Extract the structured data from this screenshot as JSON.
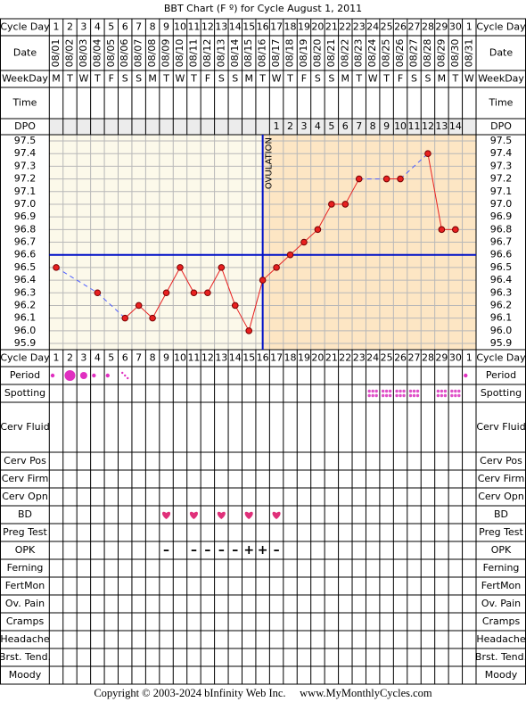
{
  "chart_data": {
    "type": "line",
    "title": "BBT Chart (F º) for Cycle August 1, 2011",
    "top_rows": [
      "Cycle Day",
      "Date",
      "WeekDay",
      "Time",
      "DPO"
    ],
    "bottom_rows": [
      "Cycle Day",
      "Period",
      "Spotting",
      "Cerv Fluid",
      "Cerv Pos",
      "Cerv Firm",
      "Cerv Opn",
      "BD",
      "Preg Test",
      "OPK",
      "Ferning",
      "FertMon",
      "Ov. Pain",
      "Cramps",
      "Headache",
      "Brst. Tend.",
      "Moody"
    ],
    "categories": [
      1,
      2,
      3,
      4,
      5,
      6,
      7,
      8,
      9,
      10,
      11,
      12,
      13,
      14,
      15,
      16,
      17,
      18,
      19,
      20,
      21,
      22,
      23,
      24,
      25,
      26,
      27,
      28,
      29,
      30,
      1
    ],
    "dates": [
      "08/01",
      "08/02",
      "08/03",
      "08/04",
      "08/05",
      "08/06",
      "08/07",
      "08/08",
      "08/09",
      "08/10",
      "08/11",
      "08/12",
      "08/13",
      "08/14",
      "08/15",
      "08/16",
      "08/17",
      "08/18",
      "08/19",
      "08/20",
      "08/21",
      "08/22",
      "08/23",
      "08/24",
      "08/25",
      "08/26",
      "08/27",
      "08/28",
      "08/29",
      "08/30",
      "08/31"
    ],
    "weekdays": [
      "M",
      "T",
      "W",
      "T",
      "F",
      "S",
      "S",
      "M",
      "T",
      "W",
      "T",
      "F",
      "S",
      "S",
      "M",
      "T",
      "W",
      "T",
      "F",
      "S",
      "S",
      "M",
      "T",
      "W",
      "T",
      "F",
      "S",
      "S",
      "M",
      "T",
      "W"
    ],
    "dpo": [
      null,
      null,
      null,
      null,
      null,
      null,
      null,
      null,
      null,
      null,
      null,
      null,
      null,
      null,
      null,
      null,
      1,
      2,
      3,
      4,
      5,
      6,
      7,
      8,
      9,
      10,
      11,
      12,
      13,
      14,
      null
    ],
    "values": [
      96.5,
      null,
      null,
      96.3,
      null,
      96.1,
      96.2,
      96.1,
      96.3,
      96.5,
      96.3,
      96.3,
      96.5,
      96.2,
      96.0,
      96.4,
      96.5,
      96.6,
      96.7,
      96.8,
      97.0,
      97.0,
      97.2,
      null,
      97.2,
      97.2,
      null,
      97.4,
      96.8,
      96.8,
      null
    ],
    "color": "#e82020",
    "gap_color": "#5060ff",
    "ylim": [
      95.9,
      97.5
    ],
    "yticks": [
      97.5,
      97.4,
      97.3,
      97.2,
      97.1,
      {
        "value": 97,
        "label": "97.0"
      },
      96.9,
      96.8,
      96.7,
      96.6,
      96.5,
      96.4,
      96.3,
      96.2,
      96.1,
      {
        "value": 96,
        "label": "96.0"
      },
      95.9
    ],
    "grid": true,
    "coverline": 96.6,
    "ovulation_day": 16,
    "ovulation_label": "OVULATION",
    "period": [
      2,
      4,
      3,
      2,
      2,
      1,
      null,
      null,
      null,
      null,
      null,
      null,
      null,
      null,
      null,
      null,
      null,
      null,
      null,
      null,
      null,
      null,
      null,
      null,
      null,
      null,
      null,
      null,
      null,
      null,
      2
    ],
    "spotting_days": [
      24,
      25,
      26,
      27,
      29,
      30
    ],
    "bd_days": [
      9,
      11,
      13,
      15,
      17
    ],
    "opk": [
      null,
      null,
      null,
      null,
      null,
      null,
      null,
      null,
      "–",
      null,
      "–",
      "–",
      "–",
      "–",
      "+",
      "+",
      "–",
      null,
      null,
      null,
      null,
      null,
      null,
      null,
      null,
      null,
      null,
      null,
      null,
      null,
      null
    ],
    "footer": "Copyright © 2003-2024 bInfinity Web Inc.     www.MyMonthlyCycles.com"
  }
}
